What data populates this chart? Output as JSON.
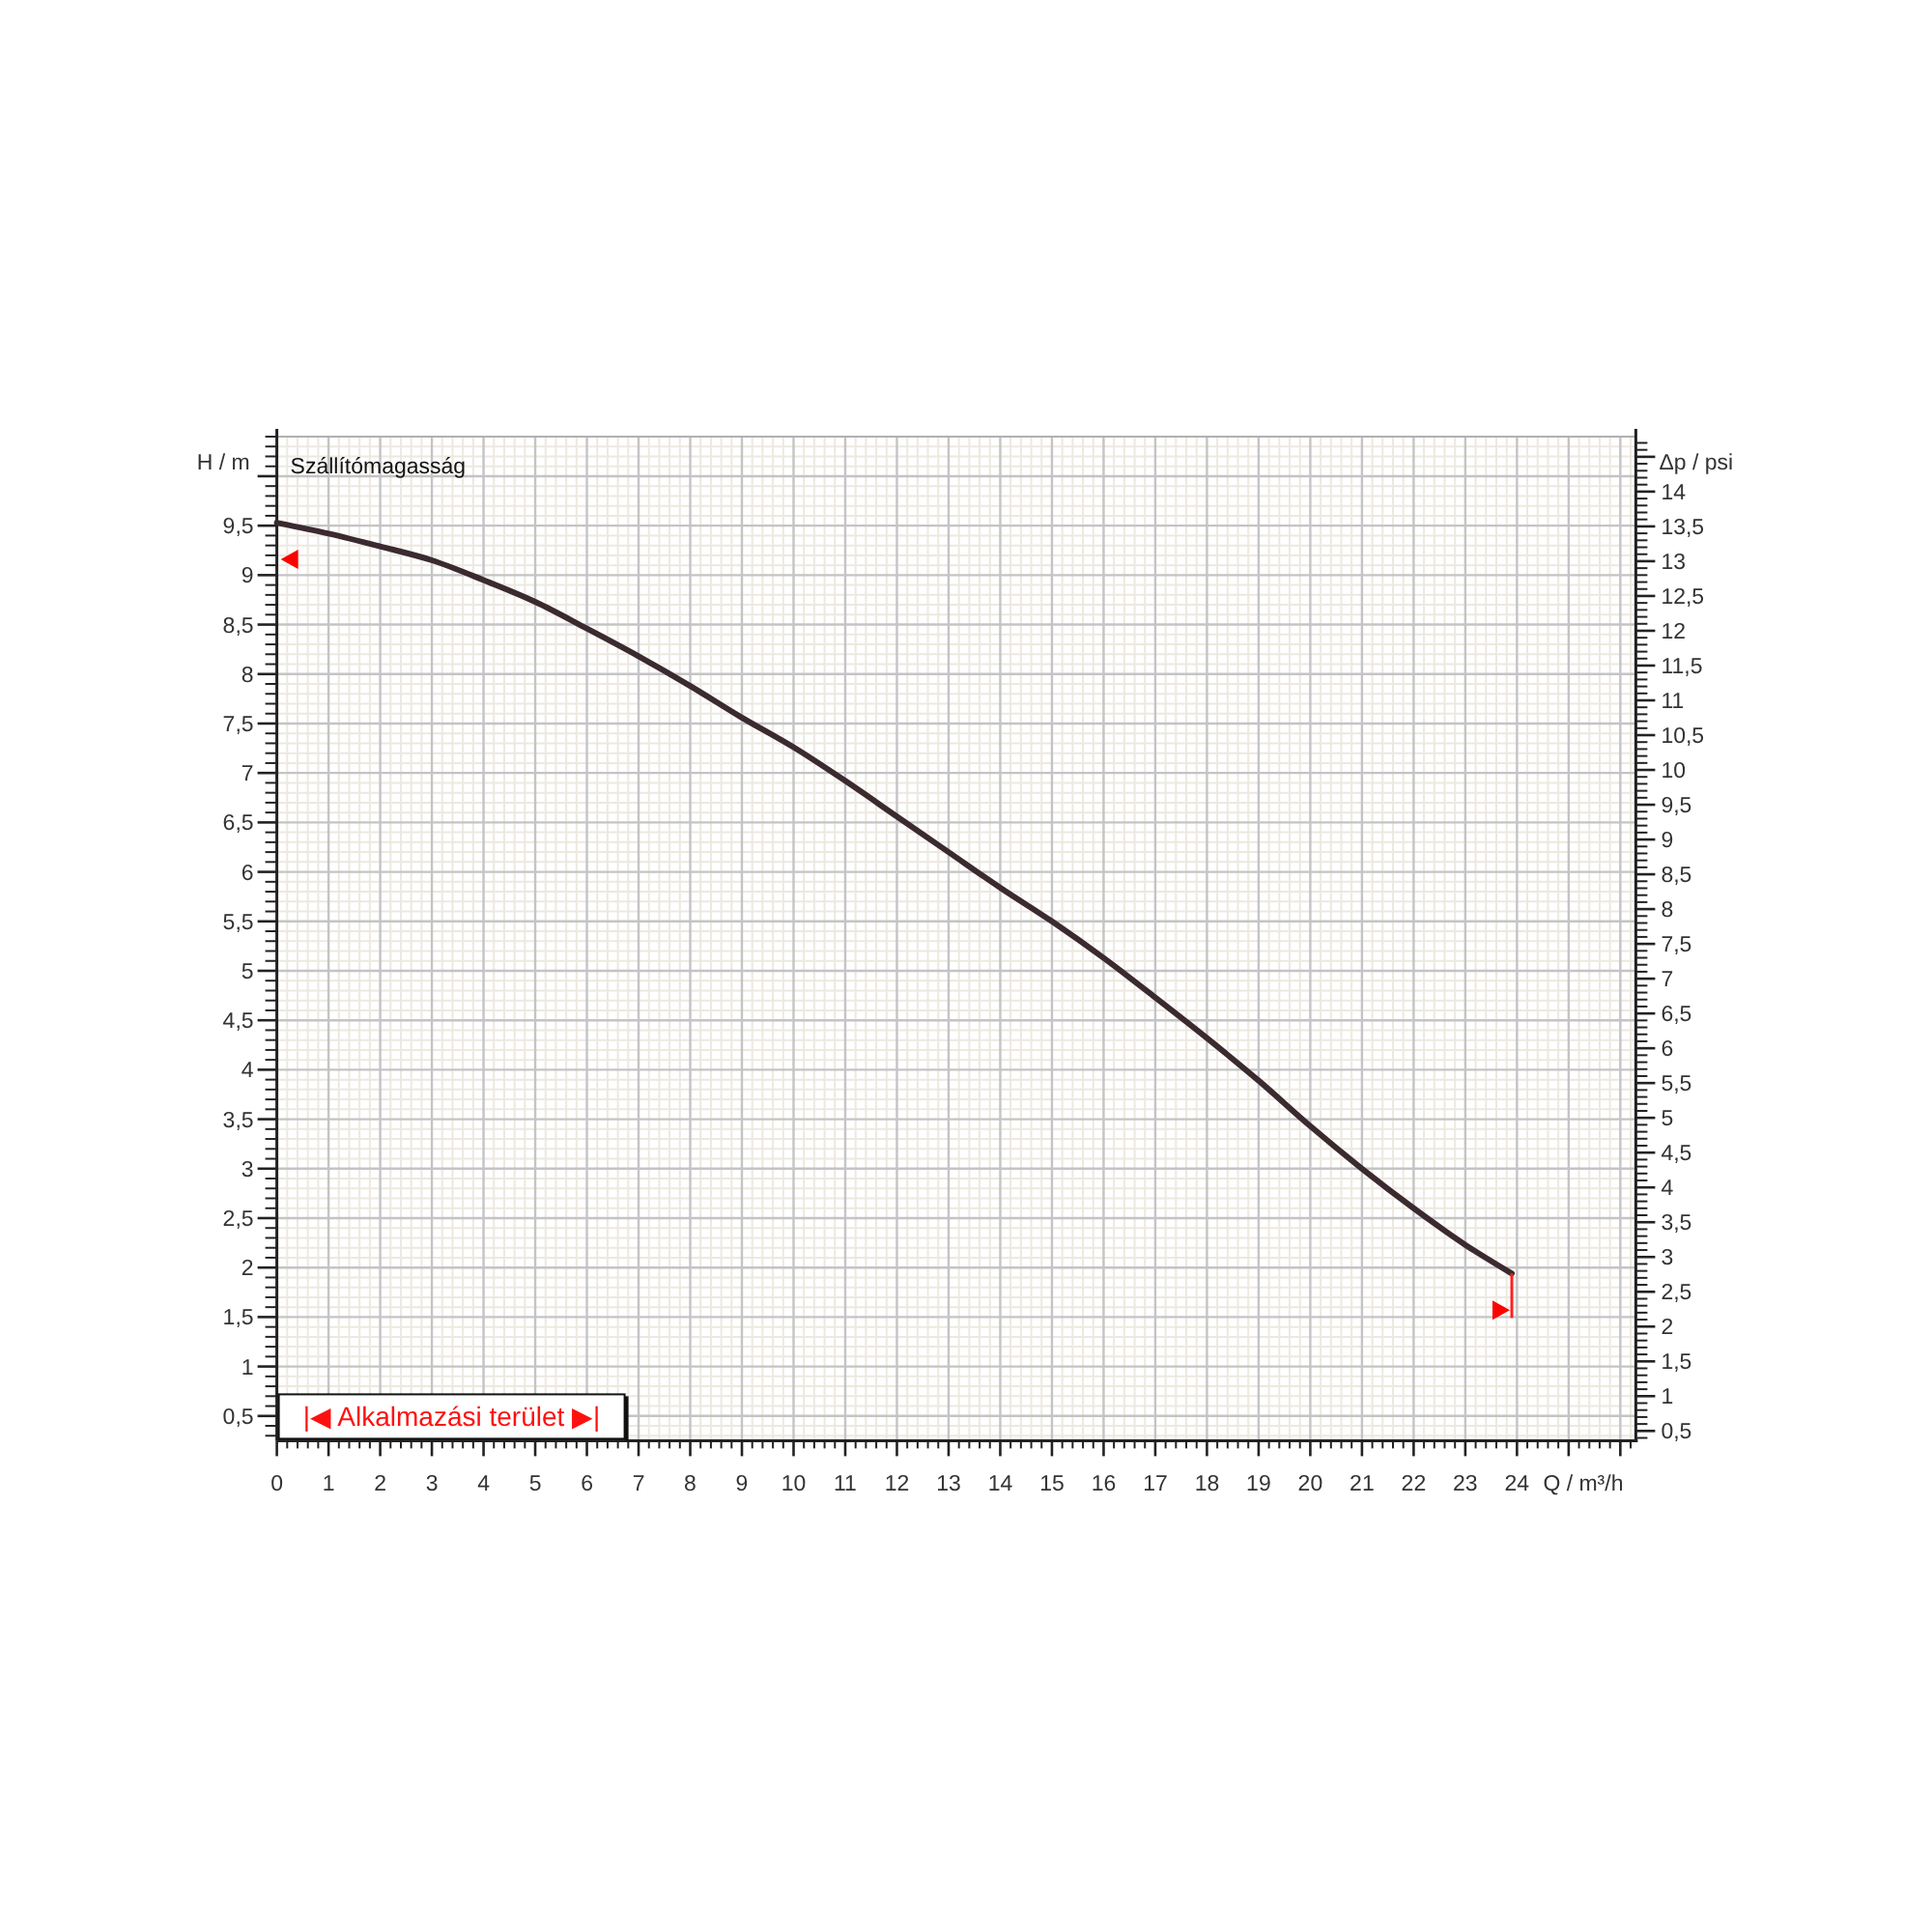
{
  "chart_data": {
    "type": "line",
    "title": "Szállítómagasság",
    "xlabel": "Q / m³/h",
    "ylabel": "H / m",
    "y2label": "Δp / psi",
    "annotations": [
      "|◀ Alkalmazási terület ▶|"
    ],
    "x": [
      0,
      1,
      2,
      3,
      4,
      5,
      6,
      7,
      8,
      9,
      10,
      11,
      12,
      13,
      14,
      15,
      16,
      17,
      18,
      19,
      20,
      21,
      22,
      23,
      23.9
    ],
    "series": [
      {
        "color": "#3b2a30",
        "values": [
          9.53,
          9.42,
          9.29,
          9.15,
          8.95,
          8.73,
          8.46,
          8.18,
          7.88,
          7.56,
          7.26,
          6.92,
          6.56,
          6.2,
          5.84,
          5.5,
          5.13,
          4.73,
          4.32,
          3.89,
          3.43,
          3.0,
          2.6,
          2.23,
          1.94
        ]
      }
    ],
    "xlim": [
      0,
      26.3
    ],
    "xticks": [
      0,
      1,
      2,
      3,
      4,
      5,
      6,
      7,
      8,
      9,
      10,
      11,
      12,
      13,
      14,
      15,
      16,
      17,
      18,
      19,
      20,
      21,
      22,
      23,
      24,
      {
        "value": 25,
        "label": null
      },
      {
        "value": 26,
        "label": null
      }
    ],
    "ylim": [
      0.25,
      10.4
    ],
    "yticks": [
      {
        "value": 0.5,
        "label": "0,5"
      },
      1,
      {
        "value": 1.5,
        "label": "1,5"
      },
      2,
      {
        "value": 2.5,
        "label": "2,5"
      },
      3,
      {
        "value": 3.5,
        "label": "3,5"
      },
      4,
      {
        "value": 4.5,
        "label": "4,5"
      },
      5,
      {
        "value": 5.5,
        "label": "5,5"
      },
      6,
      {
        "value": 6.5,
        "label": "6,5"
      },
      7,
      {
        "value": 7.5,
        "label": "7,5"
      },
      8,
      {
        "value": 8.5,
        "label": "8,5"
      },
      9,
      {
        "value": 9.5,
        "label": "9,5"
      },
      {
        "value": 10,
        "label": null
      }
    ],
    "y2lim": [
      0.36,
      14.79
    ],
    "y2ticks": [
      {
        "value": 0.5,
        "label": "0,5"
      },
      1,
      {
        "value": 1.5,
        "label": "1,5"
      },
      2,
      {
        "value": 2.5,
        "label": "2,5"
      },
      3,
      {
        "value": 3.5,
        "label": "3,5"
      },
      4,
      {
        "value": 4.5,
        "label": "4,5"
      },
      5,
      {
        "value": 5.5,
        "label": "5,5"
      },
      6,
      {
        "value": 6.5,
        "label": "6,5"
      },
      7,
      {
        "value": 7.5,
        "label": "7,5"
      },
      8,
      {
        "value": 8.5,
        "label": "8,5"
      },
      9,
      {
        "value": 9.5,
        "label": "9,5"
      },
      10,
      {
        "value": 10.5,
        "label": "10,5"
      },
      11,
      {
        "value": 11.5,
        "label": "11,5"
      },
      12,
      {
        "value": 12.5,
        "label": "12,5"
      },
      13,
      {
        "value": 13.5,
        "label": "13,5"
      },
      14,
      {
        "value": 14.5,
        "label": null
      }
    ],
    "grid": true
  }
}
